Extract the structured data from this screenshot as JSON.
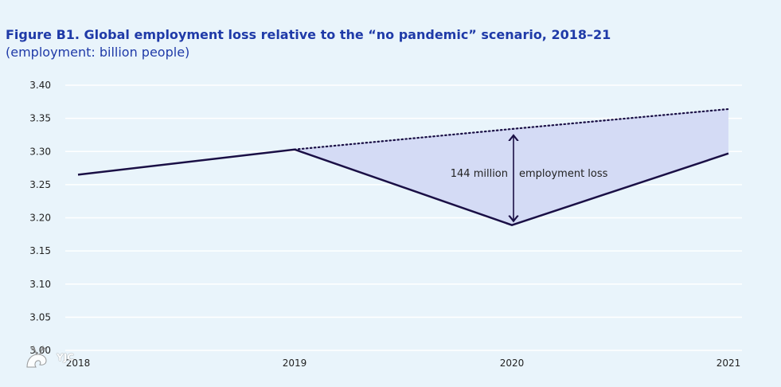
{
  "header": {
    "title": "Figure B1.  Global employment loss relative to the “no pandemic” scenario, 2018–21",
    "subtitle": "(employment: billion people)"
  },
  "colors": {
    "background": "#e9f4fb",
    "title": "#1f3aa8",
    "actual_line": "#1a0f45",
    "scenario_line": "#1a0f45",
    "gap_fill": "#d4dbf5",
    "grid": "#ffffff"
  },
  "watermark": {
    "text": "YJC"
  },
  "chart_data": {
    "type": "line",
    "title": "Figure B1.  Global employment loss relative to the “no pandemic” scenario, 2018–21",
    "ylabel": "(employment: billion people)",
    "xlabel": "",
    "x": [
      "2018",
      "2019",
      "2020",
      "2021"
    ],
    "ylim": [
      3.0,
      3.4
    ],
    "yticks": [
      "3.00",
      "3.05",
      "3.10",
      "3.15",
      "3.20",
      "3.25",
      "3.30",
      "3.35",
      "3.40"
    ],
    "grid": true,
    "legend": "none",
    "series": [
      {
        "style": "solid",
        "values": [
          3.265,
          3.303,
          3.189,
          3.297
        ]
      },
      {
        "style": "dotted",
        "values": [
          null,
          3.303,
          3.334,
          3.364
        ]
      }
    ],
    "shaded_region": {
      "between": "series",
      "from_x": "2019",
      "to_x": "2021"
    },
    "annotations": [
      {
        "x": "2020",
        "from": 3.189,
        "to": 3.334,
        "type": "double-arrow",
        "value_text": "144 million",
        "label_text": "employment loss"
      }
    ]
  }
}
